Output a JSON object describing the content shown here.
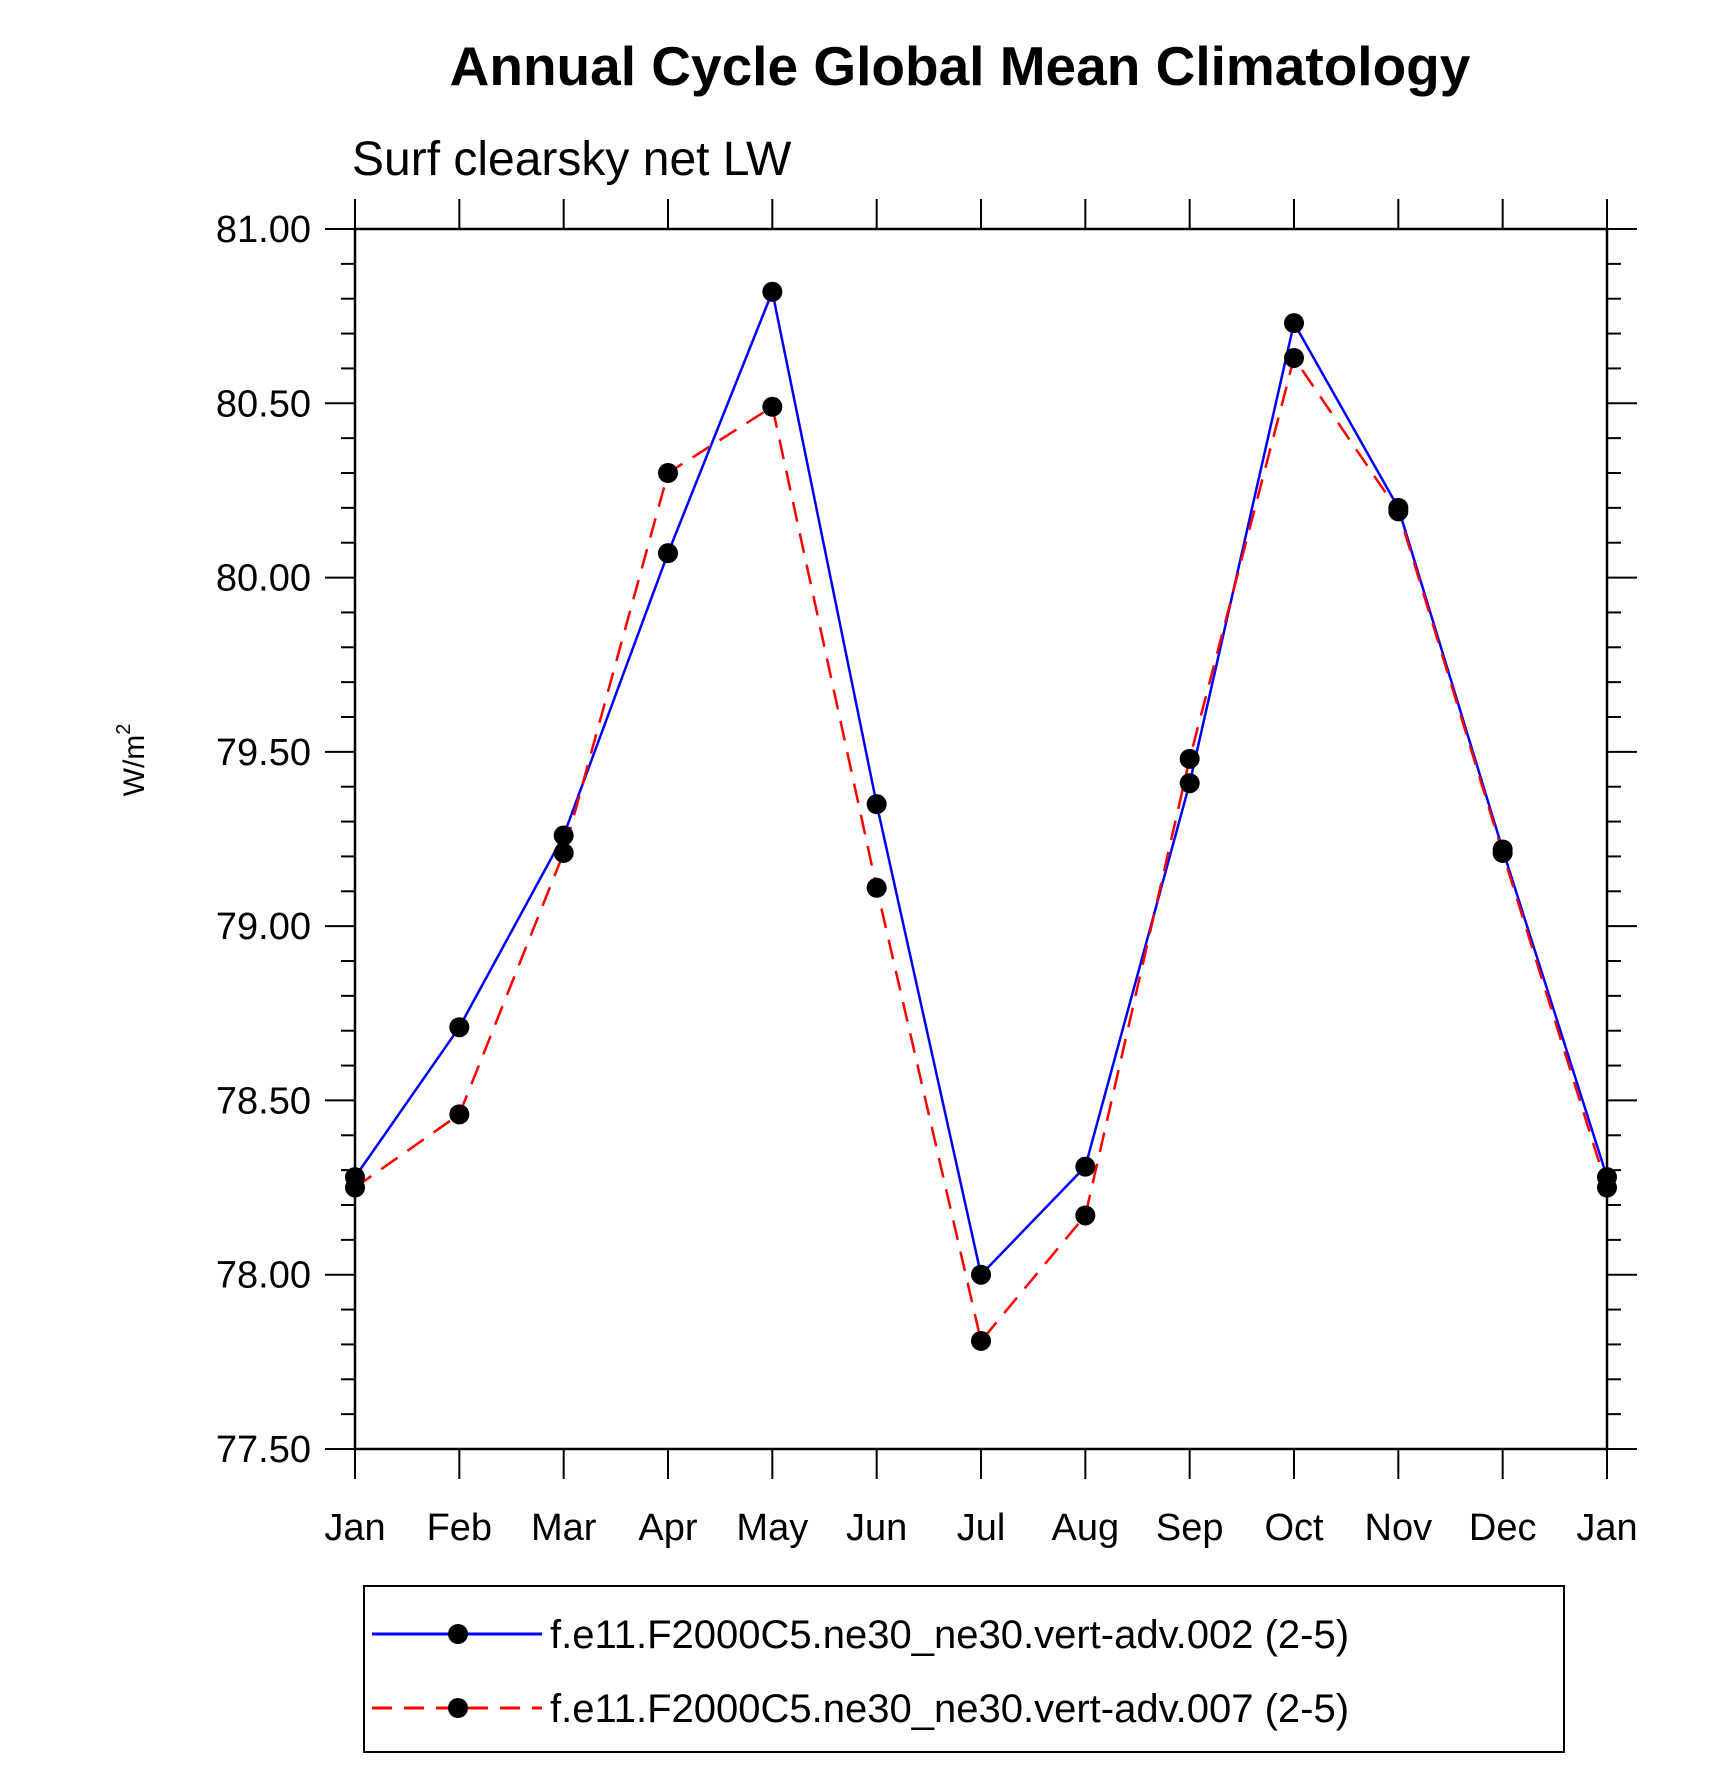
{
  "chart_data": {
    "type": "line",
    "title": "Annual Cycle Global Mean Climatology",
    "subtitle": "Surf clearsky net LW",
    "ylabel_base": "W/m",
    "ylabel_sup": "2",
    "ylim": [
      77.5,
      81.0
    ],
    "yticks": [
      77.5,
      78.0,
      78.5,
      79.0,
      79.5,
      80.0,
      80.5,
      81.0
    ],
    "ytick_labels": [
      "77.50",
      "78.00",
      "78.50",
      "79.00",
      "79.50",
      "80.00",
      "80.50",
      "81.00"
    ],
    "categories": [
      "Jan",
      "Feb",
      "Mar",
      "Apr",
      "May",
      "Jun",
      "Jul",
      "Aug",
      "Sep",
      "Oct",
      "Nov",
      "Dec",
      "Jan"
    ],
    "series": [
      {
        "name": "f.e11.F2000C5.ne30_ne30.vert-adv.002 (2-5)",
        "color": "#0000ff",
        "dash": "solid",
        "values": [
          78.28,
          78.71,
          79.26,
          80.07,
          80.82,
          79.35,
          78.0,
          78.31,
          79.41,
          80.73,
          80.2,
          79.22,
          78.28
        ]
      },
      {
        "name": "f.e11.F2000C5.ne30_ne30.vert-adv.007 (2-5)",
        "color": "#ff0000",
        "dash": "dashed",
        "values": [
          78.25,
          78.46,
          79.21,
          80.3,
          80.49,
          79.11,
          77.81,
          78.17,
          79.48,
          80.63,
          80.19,
          79.21,
          78.25
        ]
      }
    ],
    "legend_position": "bottom"
  }
}
